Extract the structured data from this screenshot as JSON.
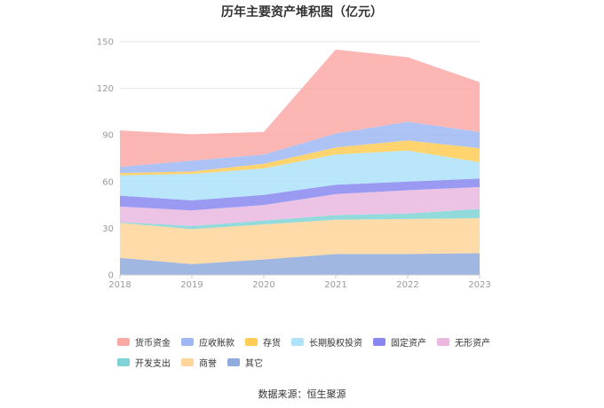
{
  "chart_data": {
    "type": "area",
    "stacked": true,
    "title": "历年主要资产堆积图（亿元）",
    "x": [
      "2018",
      "2019",
      "2020",
      "2021",
      "2022",
      "2023"
    ],
    "yticks": [
      0,
      30,
      60,
      90,
      120,
      150
    ],
    "ylim": [
      0,
      150
    ],
    "grid": true,
    "legend_position": "bottom",
    "series": [
      {
        "name": "其它",
        "color": "#8faadc",
        "values": [
          11,
          7,
          10,
          13.5,
          13.5,
          14
        ]
      },
      {
        "name": "商誉",
        "color": "#ffd59a",
        "values": [
          22.5,
          22.5,
          22.5,
          22,
          22.5,
          22.5
        ]
      },
      {
        "name": "开发支出",
        "color": "#7fd3d6",
        "values": [
          0.5,
          2,
          2.5,
          3,
          3.5,
          6
        ]
      },
      {
        "name": "无形资产",
        "color": "#eab8e0",
        "values": [
          10,
          10,
          10,
          13.5,
          15,
          14
        ]
      },
      {
        "name": "固定资产",
        "color": "#8888f0",
        "values": [
          7,
          6.5,
          6.5,
          6,
          5.5,
          5.5
        ]
      },
      {
        "name": "长期股权投资",
        "color": "#aee2fb",
        "values": [
          13,
          17,
          17,
          19.5,
          20,
          10.5
        ]
      },
      {
        "name": "存货",
        "color": "#ffcc55",
        "values": [
          1.5,
          1.5,
          3,
          4.5,
          6.5,
          9
        ]
      },
      {
        "name": "应收账款",
        "color": "#9fb8f5",
        "values": [
          4,
          7,
          6,
          9,
          12,
          10.5
        ]
      },
      {
        "name": "货币资金",
        "color": "#fca9a6",
        "values": [
          23.5,
          17,
          14.5,
          54,
          41.5,
          32
        ]
      }
    ],
    "legend_order": [
      "货币资金",
      "应收账款",
      "存货",
      "长期股权投资",
      "固定资产",
      "无形资产",
      "开发支出",
      "商誉",
      "其它"
    ]
  },
  "source": "数据来源：恒生聚源"
}
